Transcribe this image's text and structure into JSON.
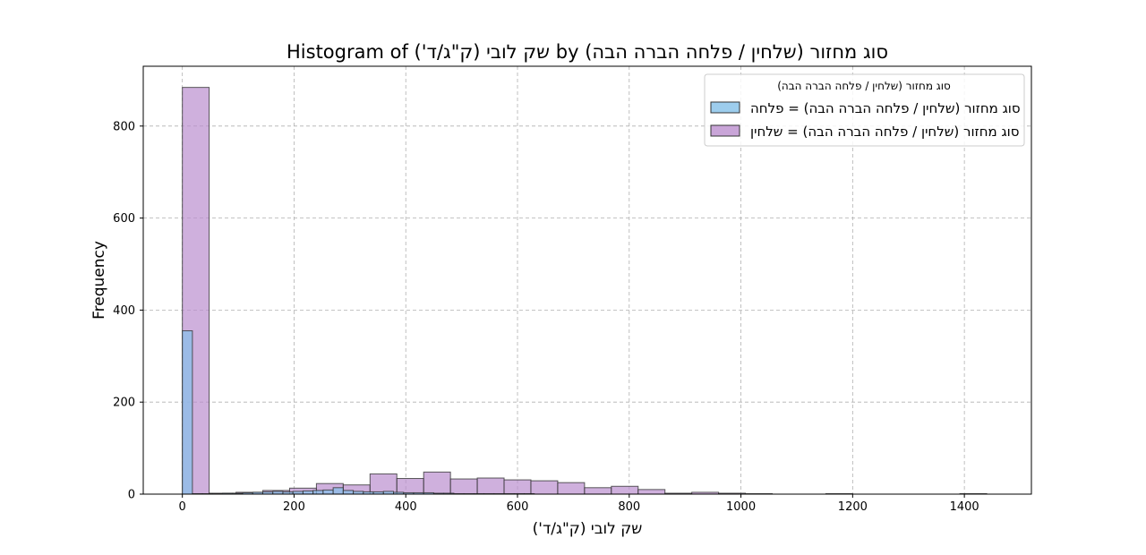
{
  "chart_data": {
    "type": "bar",
    "title": "Histogram of שק לובי (ק\"ג/ד') by סוג מחזור (שלחין / פלחה הברה הבה)",
    "xlabel": "שק לובי (ק\"ג/ד')",
    "ylabel": "Frequency",
    "xlim": [
      -70,
      1520
    ],
    "ylim": [
      0,
      930
    ],
    "xticks": [
      0,
      200,
      400,
      600,
      800,
      1000,
      1200,
      1400
    ],
    "yticks": [
      0,
      200,
      400,
      600,
      800
    ],
    "grid": true,
    "legend_position": "top-right",
    "legend_title": "סוג מחזור (שלחין / פלחה הברה הבה)",
    "series": [
      {
        "name": "סוג מחזור (שלחין / פלחה הברה הבה) = פלחה",
        "color": "#85c1e9",
        "bin_width": 18,
        "bins": [
          [
            0,
            355
          ],
          [
            18,
            1
          ],
          [
            36,
            1
          ],
          [
            54,
            1
          ],
          [
            72,
            2
          ],
          [
            90,
            2
          ],
          [
            108,
            3
          ],
          [
            126,
            4
          ],
          [
            144,
            5
          ],
          [
            162,
            6
          ],
          [
            180,
            5
          ],
          [
            198,
            6
          ],
          [
            216,
            7
          ],
          [
            234,
            8
          ],
          [
            252,
            9
          ],
          [
            270,
            14
          ],
          [
            288,
            8
          ],
          [
            306,
            6
          ],
          [
            324,
            5
          ],
          [
            342,
            5
          ],
          [
            360,
            6
          ],
          [
            378,
            4
          ],
          [
            396,
            3
          ],
          [
            414,
            3
          ],
          [
            432,
            3
          ],
          [
            450,
            2
          ],
          [
            468,
            2
          ],
          [
            486,
            1
          ],
          [
            504,
            1
          ],
          [
            522,
            1
          ],
          [
            540,
            1
          ],
          [
            558,
            1
          ],
          [
            576,
            1
          ],
          [
            594,
            1
          ],
          [
            612,
            1
          ]
        ]
      },
      {
        "name": "סוג מחזור (שלחין / פלחה הברה הבה) = שלחין",
        "color": "#bb8fce",
        "bin_width": 48,
        "bins": [
          [
            0,
            884
          ],
          [
            48,
            2
          ],
          [
            96,
            4
          ],
          [
            144,
            8
          ],
          [
            192,
            13
          ],
          [
            240,
            23
          ],
          [
            288,
            20
          ],
          [
            336,
            44
          ],
          [
            384,
            34
          ],
          [
            432,
            48
          ],
          [
            480,
            33
          ],
          [
            528,
            35
          ],
          [
            576,
            31
          ],
          [
            624,
            29
          ],
          [
            672,
            25
          ],
          [
            720,
            14
          ],
          [
            768,
            17
          ],
          [
            816,
            10
          ],
          [
            864,
            2
          ],
          [
            912,
            4
          ],
          [
            960,
            2
          ],
          [
            1008,
            1
          ],
          [
            1056,
            0
          ],
          [
            1104,
            0
          ],
          [
            1152,
            1
          ],
          [
            1200,
            0
          ],
          [
            1248,
            0
          ],
          [
            1296,
            0
          ],
          [
            1344,
            0
          ],
          [
            1392,
            1
          ]
        ]
      }
    ]
  }
}
